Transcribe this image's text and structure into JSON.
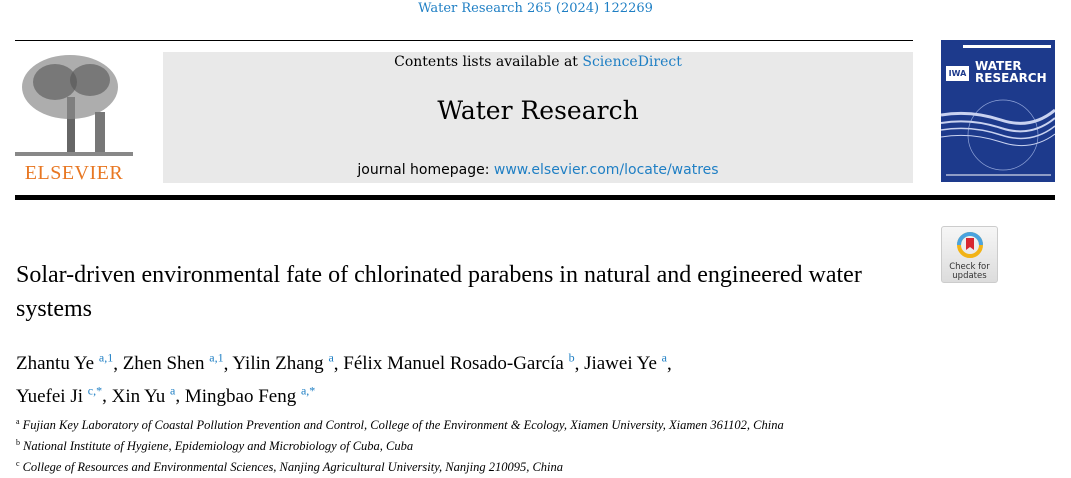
{
  "journal_ref": "Water Research 265 (2024) 122269",
  "header": {
    "contents_prefix": "Contents lists available at ",
    "contents_link": "ScienceDirect",
    "journal_title": "Water Research",
    "homepage_prefix": "journal homepage: ",
    "homepage_link": "www.elsevier.com/locate/watres",
    "publisher_logo": "ELSEVIER",
    "cover_title_1": "WATER",
    "cover_title_2": "RESEARCH",
    "cover_badge": "IWA",
    "check_updates": [
      "Check for",
      "updates"
    ]
  },
  "title": "Solar-driven environmental fate of chlorinated parabens in natural and engineered water systems",
  "authors": [
    {
      "name": "Zhantu Ye",
      "sup": "a,1"
    },
    {
      "name": "Zhen Shen",
      "sup": "a,1"
    },
    {
      "name": "Yilin Zhang",
      "sup": "a"
    },
    {
      "name": "Félix Manuel Rosado-García",
      "sup": "b"
    },
    {
      "name": "Jiawei Ye",
      "sup": "a"
    },
    {
      "name": "Yuefei Ji",
      "sup": "c,*"
    },
    {
      "name": "Xin Yu",
      "sup": "a"
    },
    {
      "name": "Mingbao Feng",
      "sup": "a,*"
    }
  ],
  "affiliations": [
    {
      "key": "a",
      "text": "Fujian Key Laboratory of Coastal Pollution Prevention and Control, College of the Environment & Ecology, Xiamen University, Xiamen 361102, China"
    },
    {
      "key": "b",
      "text": "National Institute of Hygiene, Epidemiology and Microbiology of Cuba, Cuba"
    },
    {
      "key": "c",
      "text": "College of Resources and Environmental Sciences, Nanjing Agricultural University, Nanjing 210095, China"
    }
  ],
  "colors": {
    "link": "#1f7fc4",
    "elsevier": "#e87722",
    "cover": "#1d3a8c"
  }
}
